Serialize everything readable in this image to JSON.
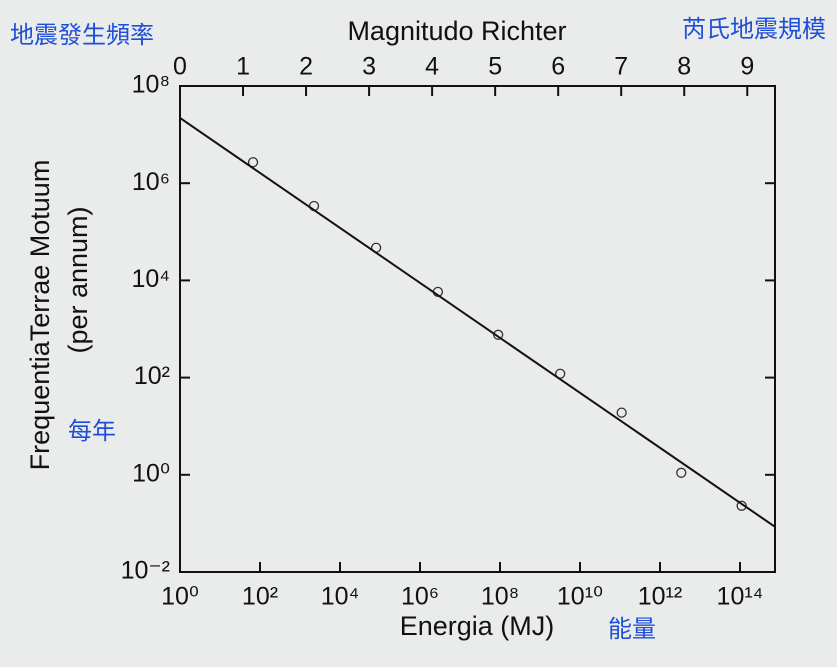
{
  "chart_data": {
    "type": "scatter",
    "x2label": "Magnitudo Richter",
    "xlabel": "Energia (MJ)",
    "ylabel": "FrequentiaTerrae Motuum",
    "ysublabel": "(per annum)",
    "annotations": [
      "地震發生頻率",
      "芮氏地震規模",
      "每年",
      "能量"
    ],
    "annotation_color": "#1f4fd8",
    "xlog": true,
    "ylog": true,
    "xlim": [
      1,
      750000000000000.0
    ],
    "ylim": [
      0.01,
      100000000.0
    ],
    "xticks": [
      {
        "value": 1,
        "label": "10⁰"
      },
      {
        "value": 100,
        "label": "10²"
      },
      {
        "value": 10000,
        "label": "10⁴"
      },
      {
        "value": 1000000,
        "label": "10⁶"
      },
      {
        "value": 100000000,
        "label": "10⁸"
      },
      {
        "value": 10000000000,
        "label": "10¹⁰"
      },
      {
        "value": 1000000000000,
        "label": "10¹²"
      },
      {
        "value": 100000000000000,
        "label": "10¹⁴"
      }
    ],
    "yticks": [
      {
        "value": 0.01,
        "label": "10⁻²"
      },
      {
        "value": 1,
        "label": "10⁰"
      },
      {
        "value": 100,
        "label": "10²"
      },
      {
        "value": 10000,
        "label": "10⁴"
      },
      {
        "value": 1000000,
        "label": "10⁶"
      },
      {
        "value": 100000000,
        "label": "10⁸"
      }
    ],
    "x2lim": [
      0,
      9.44
    ],
    "x2ticks": [
      0,
      1,
      2,
      3,
      4,
      5,
      6,
      7,
      8,
      9
    ],
    "series": [
      {
        "type": "scatter",
        "color": "#333333",
        "x": [
          67,
          2240,
          80000,
          2800000,
          90000000,
          3200000000,
          110000000000,
          3400000000000,
          110000000000000
        ],
        "values": [
          2700000,
          340000,
          47000,
          5800,
          760,
          120,
          19,
          1.1,
          0.23
        ]
      },
      {
        "type": "line",
        "color": "#111111",
        "x": [
          1,
          750000000000000.0
        ],
        "values": [
          22000000,
          0.085
        ]
      }
    ]
  }
}
